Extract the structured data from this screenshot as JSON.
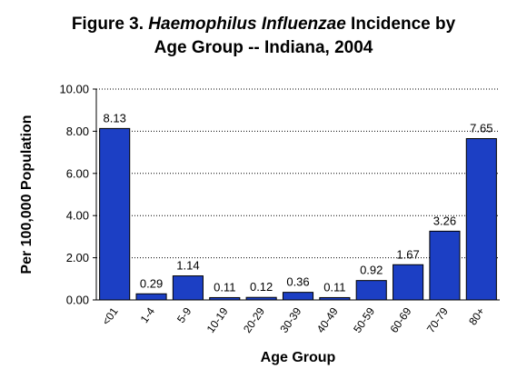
{
  "chart_data": {
    "type": "bar",
    "title_line1_prefix": "Figure 3.  ",
    "title_line1_italic": "Haemophilus Influenzae",
    "title_line1_suffix": " Incidence by",
    "title_line2": "Age Group -- Indiana, 2004",
    "xlabel": "Age Group",
    "ylabel": "Per 100,000 Population",
    "ylim": [
      0,
      10
    ],
    "yticks": [
      "0.00",
      "2.00",
      "4.00",
      "6.00",
      "8.00",
      "10.00"
    ],
    "grid": "horizontal dotted",
    "categories": [
      "<01",
      "1-4",
      "5-9",
      "10-19",
      "20-29",
      "30-39",
      "40-49",
      "50-59",
      "60-69",
      "70-79",
      "80+"
    ],
    "values": [
      8.13,
      0.29,
      1.14,
      0.11,
      0.12,
      0.36,
      0.11,
      0.92,
      1.67,
      3.26,
      7.65
    ],
    "value_labels": [
      "8.13",
      "0.29",
      "1.14",
      "0.11",
      "0.12",
      "0.36",
      "0.11",
      "0.92",
      "1.67",
      "3.26",
      "7.65"
    ],
    "bar_color": "#1c3fc4"
  }
}
